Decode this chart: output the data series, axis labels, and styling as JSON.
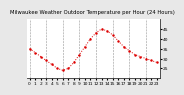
{
  "title": "Milwaukee Weather Outdoor Temperature per Hour (24 Hours)",
  "hours": [
    0,
    1,
    2,
    3,
    4,
    5,
    6,
    7,
    8,
    9,
    10,
    11,
    12,
    13,
    14,
    15,
    16,
    17,
    18,
    19,
    20,
    21,
    22,
    23
  ],
  "temps": [
    35,
    33,
    31,
    29,
    27,
    25,
    24,
    25,
    28,
    32,
    36,
    40,
    43,
    45,
    44,
    42,
    39,
    36,
    34,
    32,
    31,
    30,
    29,
    28
  ],
  "line_color": "#dd0000",
  "marker_color": "#dd0000",
  "bg_color": "#e8e8e8",
  "plot_bg_color": "#ffffff",
  "grid_color": "#888888",
  "title_color": "#000000",
  "ylim": [
    20,
    50
  ],
  "yticks": [
    25,
    30,
    35,
    40,
    45
  ],
  "ytick_labels": [
    "25",
    "30",
    "35",
    "40",
    "45"
  ],
  "xticks": [
    0,
    1,
    2,
    3,
    4,
    5,
    6,
    7,
    8,
    9,
    10,
    11,
    12,
    13,
    14,
    15,
    16,
    17,
    18,
    19,
    20,
    21,
    22,
    23
  ],
  "grid_xticks": [
    0,
    3,
    6,
    9,
    12,
    15,
    18,
    21
  ],
  "title_fontsize": 3.8,
  "tick_fontsize": 3.2,
  "linewidth": 0.7,
  "markersize": 1.5
}
